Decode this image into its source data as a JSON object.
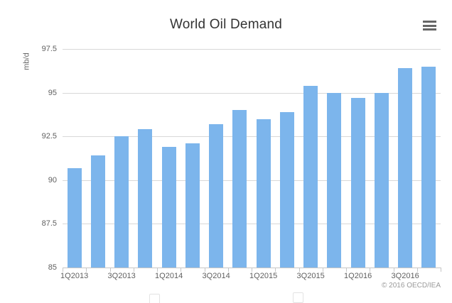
{
  "credits_label": "© 2016 OECD/IEA",
  "icons": {
    "menu": "hamburger-menu-icon"
  },
  "colors": {
    "bar": "#7cb5ec",
    "grid": "#d8d8d8",
    "axis": "#c6c6c6",
    "title_text": "#333333",
    "axis_label_text": "#606060",
    "yaxis_title_text": "#666666",
    "credits_text": "#999999",
    "menu_icon": "#666666",
    "background": "#ffffff"
  },
  "chart_data": {
    "type": "bar",
    "title": "World Oil Demand",
    "xlabel": "",
    "ylabel": "mb/d",
    "categories": [
      "1Q2013",
      "2Q2013",
      "3Q2013",
      "4Q2013",
      "1Q2014",
      "2Q2014",
      "3Q2014",
      "4Q2014",
      "1Q2015",
      "2Q2015",
      "3Q2015",
      "4Q2015",
      "1Q2016",
      "2Q2016",
      "3Q2016",
      "4Q2016"
    ],
    "values": [
      90.7,
      91.4,
      92.5,
      92.9,
      91.9,
      92.1,
      93.2,
      94.0,
      93.5,
      93.9,
      95.4,
      95.0,
      94.7,
      95.0,
      96.4,
      96.5
    ],
    "ylim": [
      85,
      97.5
    ],
    "yticks": [
      85,
      87.5,
      90,
      92.5,
      95,
      97.5
    ],
    "ytick_labels": [
      "85",
      "87.5",
      "90",
      "92.5",
      "95",
      "97.5"
    ],
    "xtick_labels": [
      "1Q2013",
      "3Q2013",
      "1Q2014",
      "3Q2014",
      "1Q2015",
      "3Q2015",
      "1Q2016",
      "3Q2016"
    ],
    "grid": true,
    "legend": false
  }
}
